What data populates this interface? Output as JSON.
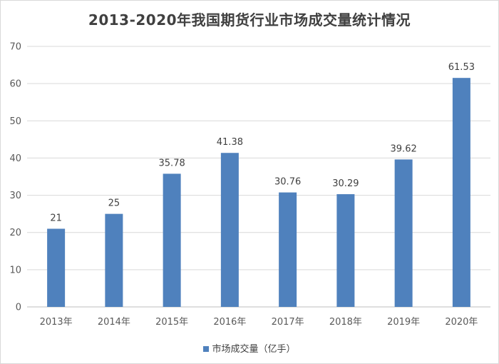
{
  "colors": {
    "bar": "#4f81bd",
    "grid": "#d9d9d9",
    "axis": "#bfbfbf"
  },
  "chart_data": {
    "type": "bar",
    "title": "2013-2020年我国期货行业市场成交量统计情况",
    "xlabel": "",
    "ylabel": "",
    "categories": [
      "2013年",
      "2014年",
      "2015年",
      "2016年",
      "2017年",
      "2018年",
      "2019年",
      "2020年"
    ],
    "series": [
      {
        "name": "市场成交量（亿手）",
        "values": [
          21,
          25,
          35.78,
          41.38,
          30.76,
          30.29,
          39.62,
          61.53
        ],
        "labels": [
          "21",
          "25",
          "35.78",
          "41.38",
          "30.76",
          "30.29",
          "39.62",
          "61.53"
        ]
      }
    ],
    "ylim": [
      0,
      70
    ],
    "yticks": [
      "0",
      "10",
      "20",
      "30",
      "40",
      "50",
      "60",
      "70"
    ],
    "grid": true,
    "legend_position": "bottom"
  }
}
